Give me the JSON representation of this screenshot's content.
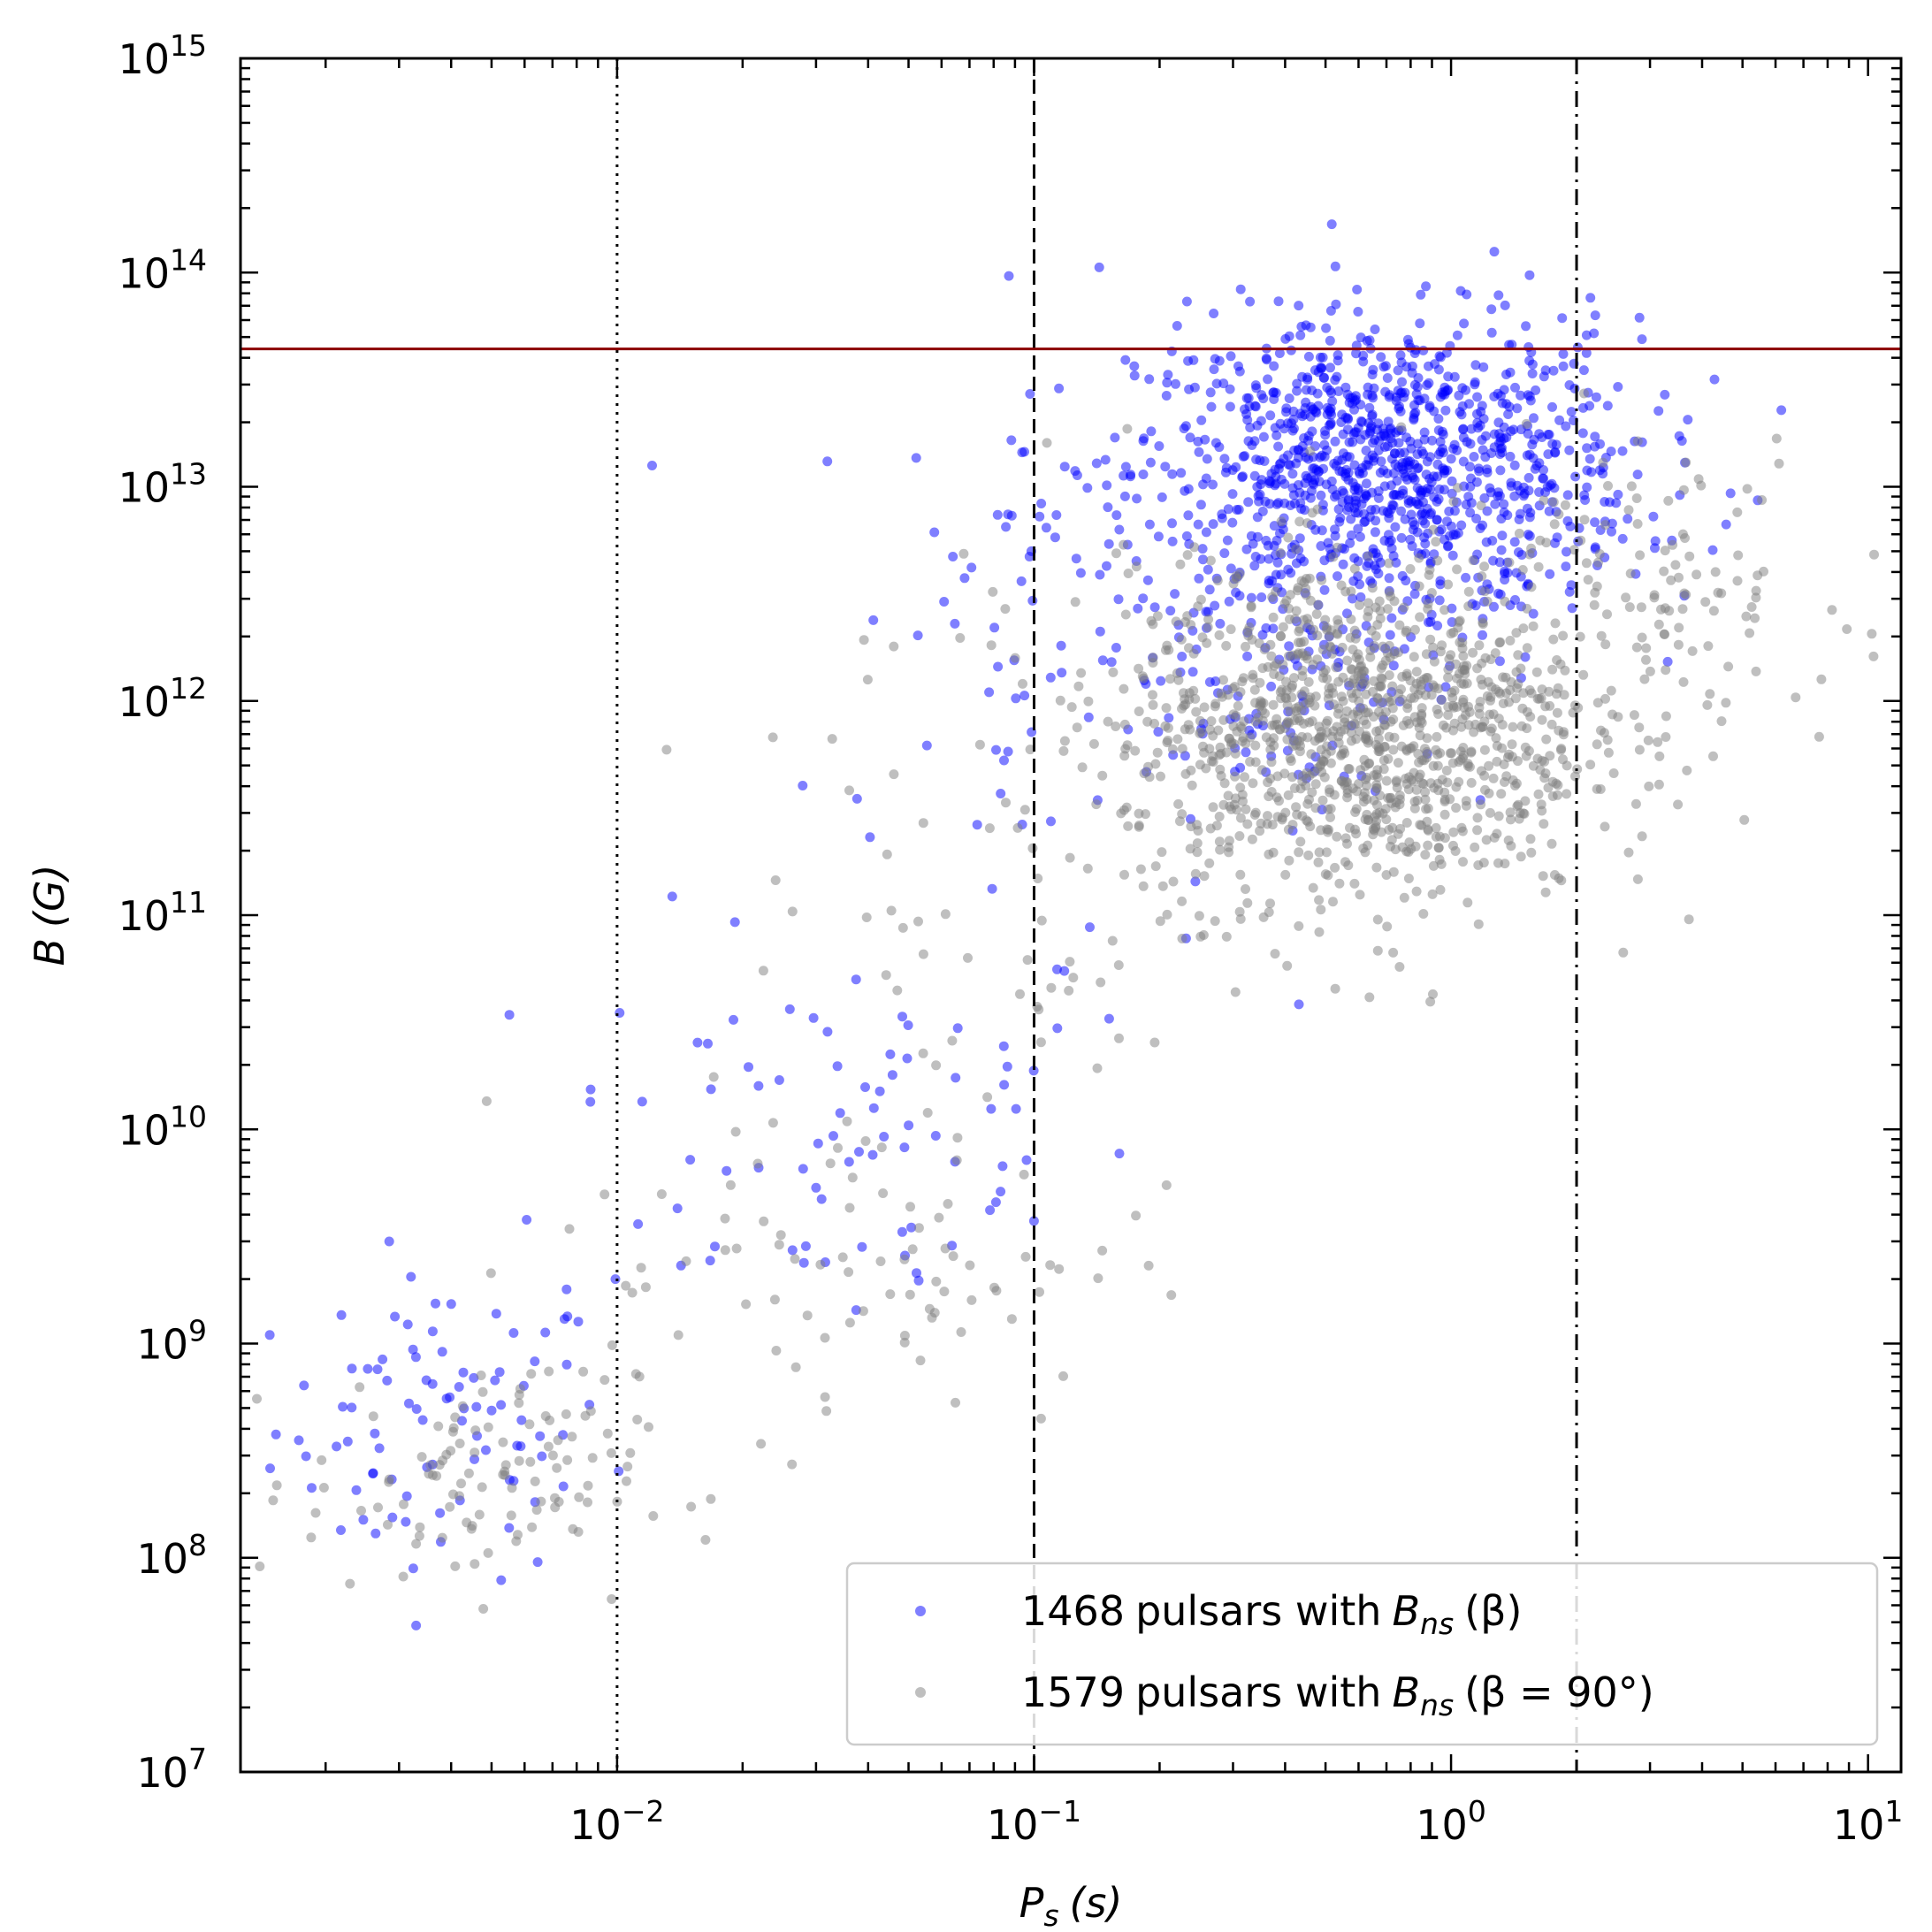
{
  "chart_data": {
    "type": "scatter",
    "title": "",
    "xlabel": {
      "symbol": "P",
      "sub": "s",
      "unit": "(s)"
    },
    "ylabel": {
      "symbol": "B",
      "unit": "(G)"
    },
    "xscale": "log",
    "yscale": "log",
    "xlim": [
      0.00125,
      12
    ],
    "ylim": [
      10000000.0,
      1000000000000000.0
    ],
    "x_ticks": [
      {
        "value": 0.01,
        "base": "10",
        "exp": "−2"
      },
      {
        "value": 0.1,
        "base": "10",
        "exp": "−1"
      },
      {
        "value": 1,
        "base": "10",
        "exp": "0"
      },
      {
        "value": 10,
        "base": "10",
        "exp": "1"
      }
    ],
    "y_ticks": [
      {
        "value": 10000000.0,
        "base": "10",
        "exp": "7"
      },
      {
        "value": 100000000.0,
        "base": "10",
        "exp": "8"
      },
      {
        "value": 1000000000.0,
        "base": "10",
        "exp": "9"
      },
      {
        "value": 10000000000.0,
        "base": "10",
        "exp": "10"
      },
      {
        "value": 100000000000.0,
        "base": "10",
        "exp": "11"
      },
      {
        "value": 1000000000000.0,
        "base": "10",
        "exp": "12"
      },
      {
        "value": 10000000000000.0,
        "base": "10",
        "exp": "13"
      },
      {
        "value": 100000000000000.0,
        "base": "10",
        "exp": "14"
      },
      {
        "value": 1000000000000000.0,
        "base": "10",
        "exp": "15"
      }
    ],
    "grid": false,
    "legend_position": "bottom-right",
    "reference_lines": [
      {
        "orientation": "vertical",
        "x": 0.01,
        "style": "dotted",
        "color": "#000000"
      },
      {
        "orientation": "vertical",
        "x": 0.1,
        "style": "dashed",
        "color": "#000000"
      },
      {
        "orientation": "vertical",
        "x": 2,
        "style": "dashdot",
        "color": "#000000"
      },
      {
        "orientation": "horizontal",
        "y": 44000000000000.0,
        "style": "solid",
        "color": "#8b0000"
      }
    ],
    "series": [
      {
        "legend": {
          "count": "1468",
          "text": "pulsars with",
          "symbol": "B",
          "sub": "ns",
          "paren": "(β)"
        },
        "color": "#0000ff",
        "opacity": 0.5,
        "total_points": 1468,
        "clusters": [
          {
            "cx": 0.0038,
            "cy": 400000000.0,
            "sx": 0.2,
            "sy": 0.35,
            "n": 90
          },
          {
            "cx": 0.035,
            "cy": 10000000000.0,
            "sx": 0.35,
            "sy": 0.5,
            "n": 80
          },
          {
            "cx": 0.09,
            "cy": 1500000000000.0,
            "sx": 0.25,
            "sy": 0.8,
            "n": 60
          },
          {
            "cx": 0.7,
            "cy": 12000000000000.0,
            "sx": 0.3,
            "sy": 0.35,
            "n": 1100
          },
          {
            "cx": 0.4,
            "cy": 1500000000000.0,
            "sx": 0.25,
            "sy": 0.35,
            "n": 138
          }
        ]
      },
      {
        "legend": {
          "count": "1579",
          "text": "pulsars with",
          "symbol": "B",
          "sub": "ns",
          "paren": "(β = 90°)"
        },
        "color": "#808080",
        "opacity": 0.5,
        "total_points": 1579,
        "clusters": [
          {
            "cx": 0.0045,
            "cy": 220000000.0,
            "sx": 0.2,
            "sy": 0.25,
            "n": 110
          },
          {
            "cx": 0.035,
            "cy": 2500000000.0,
            "sx": 0.35,
            "sy": 0.4,
            "n": 90
          },
          {
            "cx": 0.08,
            "cy": 200000000000.0,
            "sx": 0.3,
            "sy": 0.9,
            "n": 70
          },
          {
            "cx": 0.6,
            "cy": 700000000000.0,
            "sx": 0.28,
            "sy": 0.4,
            "n": 1170
          },
          {
            "cx": 2.8,
            "cy": 3500000000000.0,
            "sx": 0.25,
            "sy": 0.35,
            "n": 139
          }
        ]
      }
    ]
  }
}
